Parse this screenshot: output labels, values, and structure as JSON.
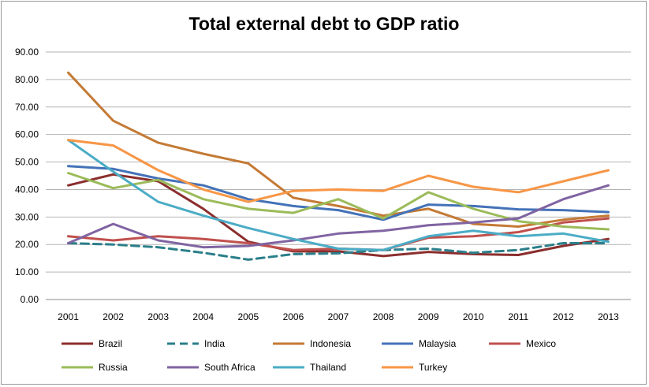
{
  "chart_data": {
    "type": "line",
    "title": "Total external debt to GDP ratio",
    "xlabel": "",
    "ylabel": "",
    "x": [
      "2001",
      "2002",
      "2003",
      "2004",
      "2005",
      "2006",
      "2007",
      "2008",
      "2009",
      "2010",
      "2011",
      "2012",
      "2013"
    ],
    "ylim": [
      0,
      90
    ],
    "yticks": [
      "0.00",
      "10.00",
      "20.00",
      "30.00",
      "40.00",
      "50.00",
      "60.00",
      "70.00",
      "80.00",
      "90.00"
    ],
    "grid": true,
    "legend_position": "bottom",
    "series": [
      {
        "name": "Brazil",
        "color": "#8b2e2e",
        "dash": false,
        "values": [
          41.5,
          45.5,
          43.0,
          33.0,
          21.0,
          17.5,
          17.5,
          15.8,
          17.3,
          16.5,
          16.2,
          19.5,
          22.0
        ]
      },
      {
        "name": "India",
        "color": "#2b7f8a",
        "dash": true,
        "values": [
          20.5,
          20.0,
          19.0,
          17.0,
          14.5,
          16.5,
          16.8,
          18.0,
          18.5,
          17.0,
          18.0,
          20.5,
          20.5
        ]
      },
      {
        "name": "Indonesia",
        "color": "#c47a35",
        "dash": false,
        "values": [
          82.5,
          65.0,
          57.0,
          53.0,
          49.5,
          37.0,
          34.0,
          30.5,
          33.0,
          27.5,
          26.5,
          29.0,
          30.5
        ]
      },
      {
        "name": "Malaysia",
        "color": "#4472b8",
        "dash": false,
        "values": [
          48.5,
          47.5,
          44.0,
          41.5,
          36.5,
          34.0,
          32.5,
          29.0,
          34.5,
          34.0,
          32.8,
          32.5,
          31.8
        ]
      },
      {
        "name": "Mexico",
        "color": "#c0504d",
        "dash": false,
        "values": [
          23.0,
          21.5,
          23.0,
          22.0,
          20.5,
          18.0,
          18.5,
          18.0,
          22.5,
          23.0,
          24.5,
          28.0,
          29.5
        ]
      },
      {
        "name": "Russia",
        "color": "#9bbb59",
        "dash": false,
        "values": [
          46.0,
          40.5,
          43.5,
          36.5,
          33.0,
          31.5,
          36.5,
          29.5,
          39.0,
          33.0,
          28.5,
          26.5,
          25.5
        ]
      },
      {
        "name": "South Africa",
        "color": "#8064a2",
        "dash": false,
        "values": [
          20.5,
          27.5,
          21.5,
          19.0,
          19.5,
          21.5,
          24.0,
          25.0,
          27.0,
          28.0,
          29.5,
          36.5,
          41.5
        ]
      },
      {
        "name": "Thailand",
        "color": "#4bacc6",
        "dash": false,
        "values": [
          58.0,
          46.5,
          35.5,
          30.5,
          26.0,
          22.0,
          18.5,
          18.0,
          23.0,
          25.0,
          23.0,
          24.0,
          21.0
        ]
      },
      {
        "name": "Turkey",
        "color": "#f79646",
        "dash": false,
        "values": [
          58.0,
          56.0,
          47.0,
          40.0,
          35.5,
          39.5,
          40.0,
          39.5,
          45.0,
          41.0,
          39.0,
          43.0,
          47.0
        ]
      }
    ]
  }
}
